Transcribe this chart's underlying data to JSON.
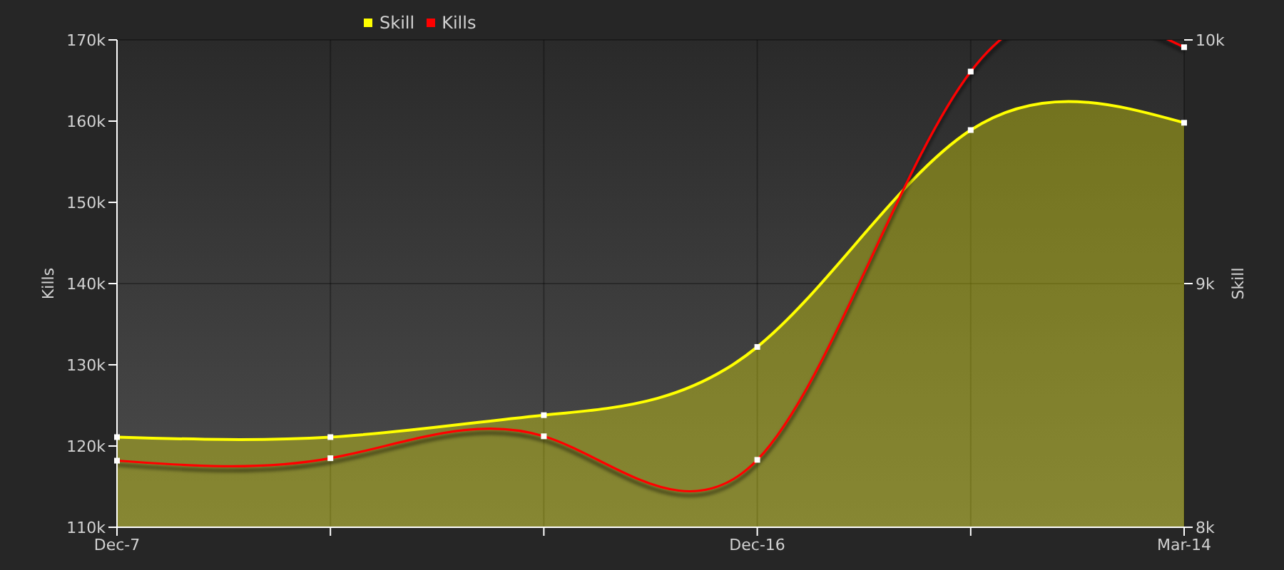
{
  "chart_data": {
    "type": "line",
    "categories": [
      "Dec-7",
      null,
      null,
      "Dec-16",
      null,
      "Mar-14"
    ],
    "series": [
      {
        "name": "Skill",
        "type": "area",
        "axis": "y2",
        "color": "#ffff00",
        "values": [
          8370,
          8370,
          8460,
          8740,
          9630,
          9660
        ]
      },
      {
        "name": "Kills",
        "type": "line",
        "color": "#ff0000",
        "values": [
          118200,
          118500,
          121200,
          118300,
          166100,
          169100
        ]
      }
    ],
    "ylabel": "Kills",
    "y2label": "Skill",
    "ylim": [
      110000,
      170000
    ],
    "yticks": [
      {
        "value": 110000,
        "label": "110k"
      },
      {
        "value": 120000,
        "label": "120k"
      },
      {
        "value": 130000,
        "label": "130k"
      },
      {
        "value": 140000,
        "label": "140k"
      },
      {
        "value": 150000,
        "label": "150k"
      },
      {
        "value": 160000,
        "label": "160k"
      },
      {
        "value": 170000,
        "label": "170k"
      }
    ],
    "y2lim": [
      8000,
      10000
    ],
    "y2ticks": [
      {
        "value": 8000,
        "label": "8k"
      },
      {
        "value": 9000,
        "label": "9k"
      },
      {
        "value": 10000,
        "label": "10k"
      }
    ],
    "grid": true,
    "legend": "top",
    "marker": "square"
  }
}
